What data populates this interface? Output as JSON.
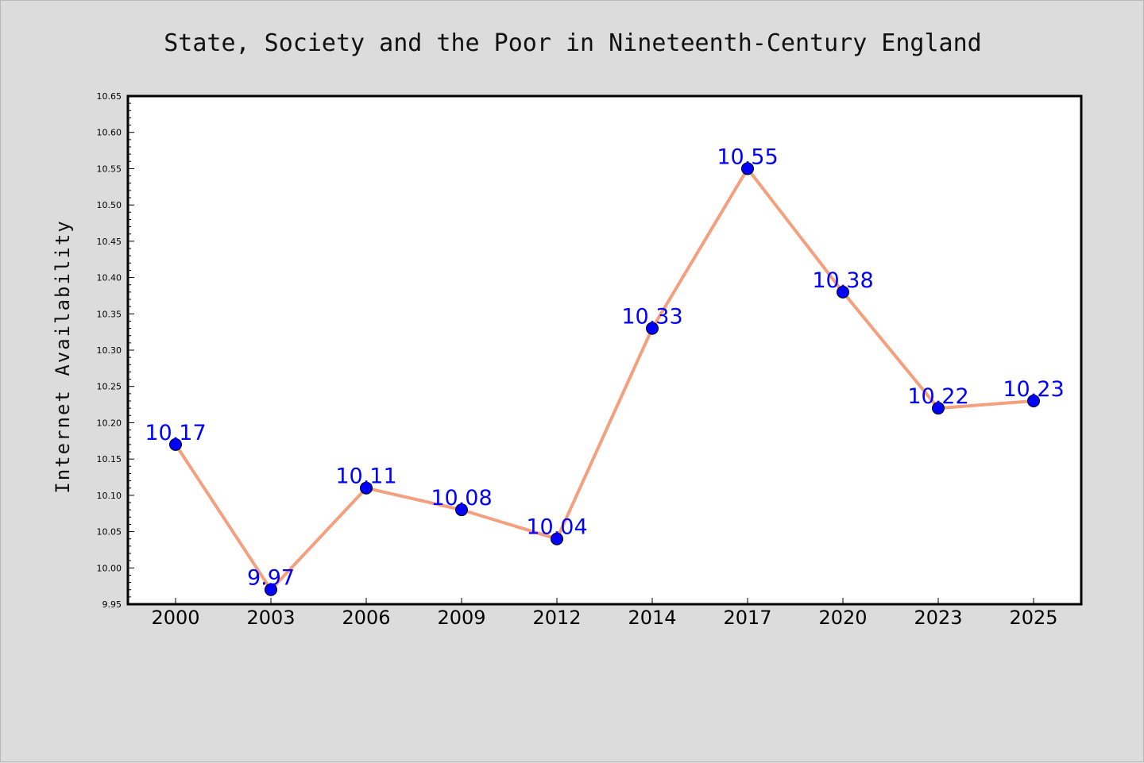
{
  "chart_data": {
    "type": "line",
    "title": "State, Society and the Poor in Nineteenth-Century England",
    "xlabel": "",
    "ylabel": "Internet Availability",
    "categories": [
      "2000",
      "2003",
      "2006",
      "2009",
      "2012",
      "2014",
      "2017",
      "2020",
      "2023",
      "2025"
    ],
    "series": [
      {
        "values": [
          10.17,
          9.97,
          10.11,
          10.08,
          10.04,
          10.33,
          10.55,
          10.38,
          10.22,
          10.23
        ],
        "labels": [
          "10.17",
          "9.97",
          "10.11",
          "10.08",
          "10.04",
          "10.33",
          "10.55",
          "10.38",
          "10.22",
          "10.23"
        ]
      }
    ],
    "ylim": [
      9.95,
      10.65
    ],
    "yticks": [
      "9.95",
      "10.00",
      "10.05",
      "10.10",
      "10.15",
      "10.20",
      "10.25",
      "10.30",
      "10.35",
      "10.40",
      "10.45",
      "10.50",
      "10.55",
      "10.60",
      "10.65"
    ],
    "grid": false,
    "legend": "none",
    "colors": {
      "line": "#f4a07f",
      "marker": "#0000ff",
      "data_label": "#0000ff",
      "background": "#dcdcdc",
      "plot_background": "#ffffff"
    }
  }
}
